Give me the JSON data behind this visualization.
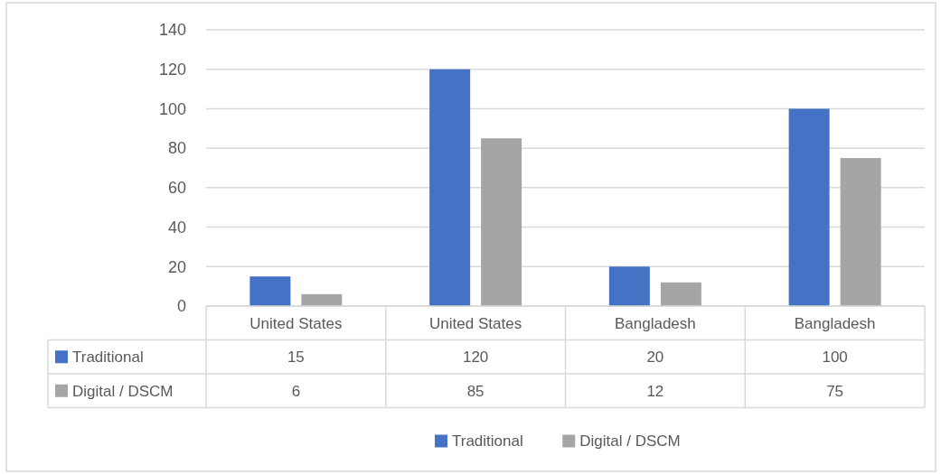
{
  "chart_data": {
    "type": "bar",
    "categories": [
      "United States",
      "United States",
      "Bangladesh",
      "Bangladesh"
    ],
    "series": [
      {
        "name": "Traditional",
        "color": "#4472c4",
        "values": [
          15,
          120,
          20,
          100
        ]
      },
      {
        "name": "Digital / DSCM",
        "color": "#a5a5a5",
        "values": [
          6,
          85,
          12,
          75
        ]
      }
    ],
    "ylim": [
      0,
      140
    ],
    "yticks": [
      0,
      20,
      40,
      60,
      80,
      100,
      120,
      140
    ],
    "grid": true,
    "legend": "bottom",
    "data_labels": true
  }
}
